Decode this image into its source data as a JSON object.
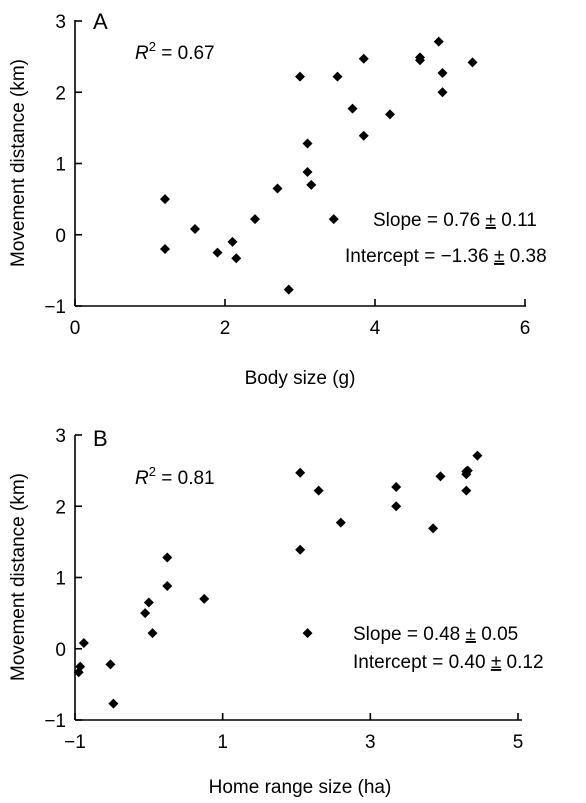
{
  "chart_data": [
    {
      "type": "scatter",
      "panel_label": "A",
      "xlabel": "Body size (g)",
      "ylabel": "Movement distance (km)",
      "xlim": [
        0,
        6
      ],
      "ylim": [
        -1,
        3
      ],
      "xticks": [
        "0",
        "2",
        "4",
        "6"
      ],
      "yticks": [
        "−1",
        "0",
        "1",
        "2",
        "3"
      ],
      "r2_prefix": "R",
      "r2_sup": "2",
      "r2_value": " = 0.67",
      "slope_text": "Slope = 0.76 ",
      "slope_pm": "±",
      "slope_err": " 0.11",
      "intercept_text": "Intercept = −1.36 ",
      "intercept_pm": "±",
      "intercept_err": " 0.38",
      "marker_color": "#000000",
      "points": [
        {
          "x": 1.2,
          "y": 0.5
        },
        {
          "x": 1.2,
          "y": -0.2
        },
        {
          "x": 1.6,
          "y": 0.08
        },
        {
          "x": 1.9,
          "y": -0.25
        },
        {
          "x": 2.1,
          "y": -0.1
        },
        {
          "x": 2.15,
          "y": -0.33
        },
        {
          "x": 2.4,
          "y": 0.22
        },
        {
          "x": 2.7,
          "y": 0.65
        },
        {
          "x": 2.85,
          "y": -0.77
        },
        {
          "x": 3.0,
          "y": 2.22
        },
        {
          "x": 3.1,
          "y": 1.28
        },
        {
          "x": 3.1,
          "y": 0.88
        },
        {
          "x": 3.15,
          "y": 0.7
        },
        {
          "x": 3.45,
          "y": 0.22
        },
        {
          "x": 3.5,
          "y": 2.22
        },
        {
          "x": 3.7,
          "y": 1.77
        },
        {
          "x": 3.85,
          "y": 2.47
        },
        {
          "x": 3.85,
          "y": 1.39
        },
        {
          "x": 4.2,
          "y": 1.69
        },
        {
          "x": 4.6,
          "y": 2.49
        },
        {
          "x": 4.6,
          "y": 2.45
        },
        {
          "x": 4.85,
          "y": 2.71
        },
        {
          "x": 4.9,
          "y": 2.27
        },
        {
          "x": 4.9,
          "y": 2.0
        },
        {
          "x": 5.3,
          "y": 2.42
        }
      ]
    },
    {
      "type": "scatter",
      "panel_label": "B",
      "xlabel": "Home range size (ha)",
      "ylabel": "Movement distance (km)",
      "xlim": [
        -1,
        5
      ],
      "ylim": [
        -1,
        3
      ],
      "xticks": [
        "−1",
        "1",
        "3",
        "5"
      ],
      "yticks": [
        "−1",
        "0",
        "1",
        "2",
        "3"
      ],
      "r2_prefix": "R",
      "r2_sup": "2",
      "r2_value": " = 0.81",
      "slope_text": "Slope = 0.48 ",
      "slope_pm": "±",
      "slope_err": " 0.05",
      "intercept_text": "Intercept = 0.40 ",
      "intercept_pm": "±",
      "intercept_err": " 0.12",
      "marker_color": "#000000",
      "points": [
        {
          "x": -0.95,
          "y": -0.33
        },
        {
          "x": -0.93,
          "y": -0.25
        },
        {
          "x": -0.88,
          "y": 0.08
        },
        {
          "x": -0.52,
          "y": -0.22
        },
        {
          "x": -0.48,
          "y": -0.77
        },
        {
          "x": -0.05,
          "y": 0.5
        },
        {
          "x": 0.0,
          "y": 0.65
        },
        {
          "x": 0.05,
          "y": 0.22
        },
        {
          "x": 0.25,
          "y": 1.28
        },
        {
          "x": 0.25,
          "y": 0.88
        },
        {
          "x": 0.75,
          "y": 0.7
        },
        {
          "x": 2.05,
          "y": 2.47
        },
        {
          "x": 2.05,
          "y": 1.39
        },
        {
          "x": 2.15,
          "y": 0.22
        },
        {
          "x": 2.3,
          "y": 2.22
        },
        {
          "x": 2.6,
          "y": 1.77
        },
        {
          "x": 3.35,
          "y": 2.27
        },
        {
          "x": 3.35,
          "y": 2.0
        },
        {
          "x": 3.85,
          "y": 1.69
        },
        {
          "x": 3.95,
          "y": 2.42
        },
        {
          "x": 4.3,
          "y": 2.49
        },
        {
          "x": 4.3,
          "y": 2.45
        },
        {
          "x": 4.3,
          "y": 2.22
        },
        {
          "x": 4.32,
          "y": 2.5
        },
        {
          "x": 4.45,
          "y": 2.71
        }
      ]
    }
  ]
}
